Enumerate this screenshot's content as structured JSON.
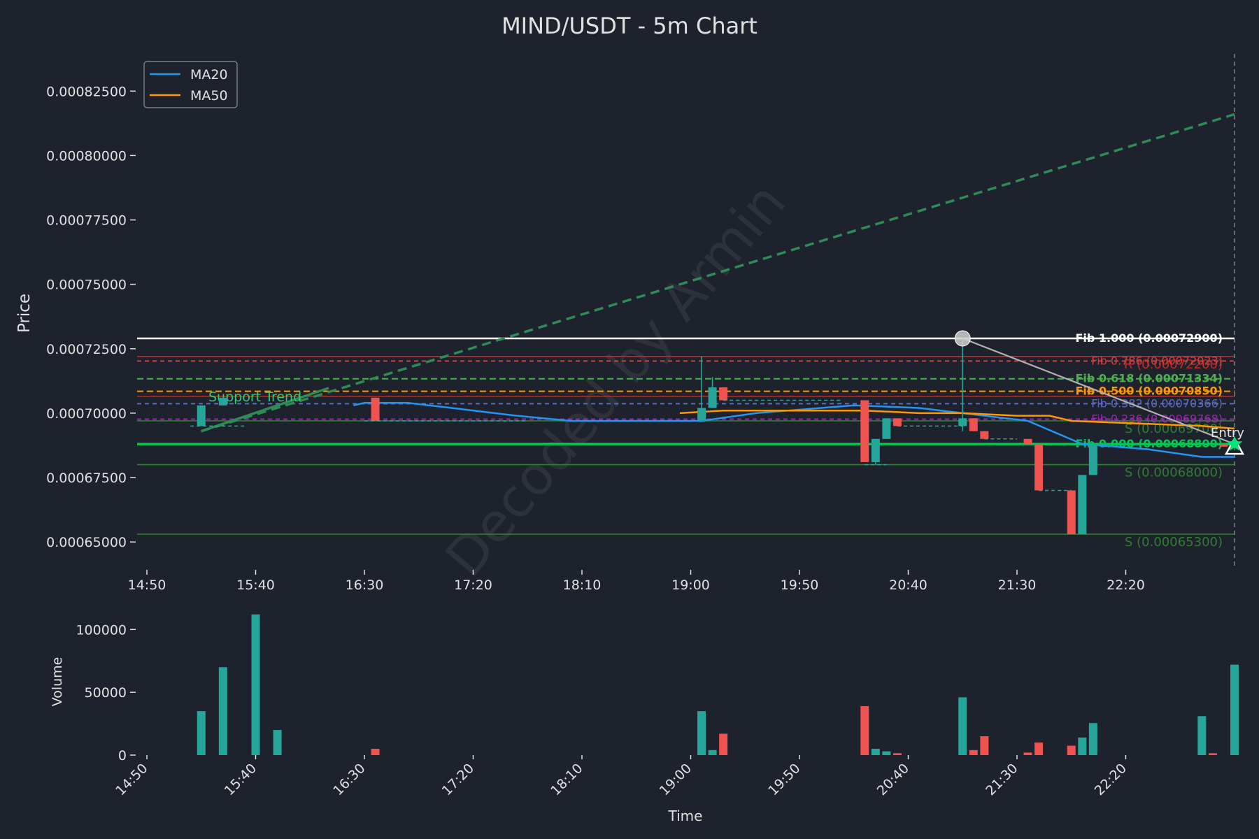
{
  "chart_data": {
    "type": "candlestick",
    "title": "MIND/USDT - 5m Chart",
    "watermark": "Decoded by Armin",
    "price_panel": {
      "ylabel": "Price",
      "ylim": [
        0.00064,
        0.00084
      ],
      "yticks": [
        "0.00065000",
        "0.00067500",
        "0.00070000",
        "0.00072500",
        "0.00075000",
        "0.00077500",
        "0.00080000",
        "0.00082500"
      ],
      "ytick_values": [
        0.00065,
        0.000675,
        0.0007,
        0.000725,
        0.00075,
        0.000775,
        0.0008,
        0.000825
      ],
      "x_range_minutes": [
        0,
        500
      ],
      "xtick_minutes": [
        0,
        50,
        100,
        150,
        200,
        250,
        300,
        350,
        400,
        450
      ],
      "xtick_labels": [
        "14:50",
        "15:40",
        "16:30",
        "17:20",
        "18:10",
        "19:00",
        "19:50",
        "20:40",
        "21:30",
        "22:20"
      ],
      "legend": {
        "placement": "top-left",
        "entries": [
          {
            "name": "MA20",
            "color": "#2196f3"
          },
          {
            "name": "MA50",
            "color": "#ff9800"
          }
        ]
      },
      "candles": [
        {
          "t": 25,
          "o": 0.000695,
          "h": 0.000703,
          "l": 0.000695,
          "c": 0.000703
        },
        {
          "t": 35,
          "o": 0.000703,
          "h": 0.000706,
          "l": 0.000703,
          "c": 0.000706
        },
        {
          "t": 105,
          "o": 0.000706,
          "h": 0.000706,
          "l": 0.000697,
          "c": 0.000697
        },
        {
          "t": 255,
          "o": 0.000697,
          "h": 0.000722,
          "l": 0.000697,
          "c": 0.000702
        },
        {
          "t": 260,
          "o": 0.000702,
          "h": 0.000714,
          "l": 0.000702,
          "c": 0.00071
        },
        {
          "t": 265,
          "o": 0.00071,
          "h": 0.00071,
          "l": 0.000705,
          "c": 0.000705
        },
        {
          "t": 330,
          "o": 0.000705,
          "h": 0.000705,
          "l": 0.000681,
          "c": 0.000681
        },
        {
          "t": 335,
          "o": 0.000681,
          "h": 0.00069,
          "l": 0.00068,
          "c": 0.00069
        },
        {
          "t": 340,
          "o": 0.00069,
          "h": 0.000698,
          "l": 0.00069,
          "c": 0.000698
        },
        {
          "t": 345,
          "o": 0.000698,
          "h": 0.000698,
          "l": 0.000695,
          "c": 0.000695
        },
        {
          "t": 375,
          "o": 0.000695,
          "h": 0.000729,
          "l": 0.000693,
          "c": 0.000698
        },
        {
          "t": 380,
          "o": 0.000698,
          "h": 0.000698,
          "l": 0.000693,
          "c": 0.000693
        },
        {
          "t": 385,
          "o": 0.000693,
          "h": 0.000693,
          "l": 0.00069,
          "c": 0.00069
        },
        {
          "t": 405,
          "o": 0.00069,
          "h": 0.00069,
          "l": 0.000688,
          "c": 0.000688
        },
        {
          "t": 410,
          "o": 0.000688,
          "h": 0.000688,
          "l": 0.00067,
          "c": 0.00067
        },
        {
          "t": 425,
          "o": 0.00067,
          "h": 0.00067,
          "l": 0.000653,
          "c": 0.000653
        },
        {
          "t": 430,
          "o": 0.000653,
          "h": 0.000676,
          "l": 0.000653,
          "c": 0.000676
        },
        {
          "t": 435,
          "o": 0.000676,
          "h": 0.000688,
          "l": 0.000676,
          "c": 0.000688
        },
        {
          "t": 495,
          "o": 0.000688,
          "h": 0.000688,
          "l": 0.000687,
          "c": 0.000687
        }
      ],
      "ma20": [
        [
          95,
          0.000703
        ],
        [
          100,
          0.000704
        ],
        [
          120,
          0.000704
        ],
        [
          140,
          0.000702
        ],
        [
          170,
          0.000699
        ],
        [
          195,
          0.000697
        ],
        [
          255,
          0.000697
        ],
        [
          280,
          0.0007
        ],
        [
          325,
          0.000703
        ],
        [
          355,
          0.000702
        ],
        [
          365,
          0.000701
        ],
        [
          385,
          0.000699
        ],
        [
          405,
          0.000697
        ],
        [
          430,
          0.000688
        ],
        [
          460,
          0.000686
        ],
        [
          485,
          0.000683
        ],
        [
          500,
          0.000683
        ]
      ],
      "ma50": [
        [
          245,
          0.0007
        ],
        [
          265,
          0.000701
        ],
        [
          295,
          0.000701
        ],
        [
          330,
          0.000701
        ],
        [
          355,
          0.0007
        ],
        [
          375,
          0.0007
        ],
        [
          400,
          0.000699
        ],
        [
          415,
          0.000699
        ],
        [
          425,
          0.000697
        ],
        [
          455,
          0.000696
        ],
        [
          485,
          0.000695
        ],
        [
          500,
          0.000694
        ]
      ],
      "dashed_close_levels": [
        {
          "t0": 20,
          "t1": 45,
          "v": 0.000695
        },
        {
          "t0": 100,
          "t1": 175,
          "v": 0.000697
        },
        {
          "t0": 265,
          "t1": 320,
          "v": 0.000705
        },
        {
          "t0": 345,
          "t1": 375,
          "v": 0.000695
        },
        {
          "t0": 385,
          "t1": 400,
          "v": 0.00069
        },
        {
          "t0": 410,
          "t1": 425,
          "v": 0.00067
        },
        {
          "t0": 330,
          "t1": 340,
          "v": 0.00068
        }
      ],
      "support_trend": {
        "label": "Support Trend",
        "from": [
          25,
          0.000693
        ],
        "to": [
          500,
          0.000816
        ]
      },
      "swing": {
        "from": [
          375,
          0.000729
        ],
        "to": [
          500,
          0.000688
        ]
      },
      "levels": [
        {
          "name": "fib_1.000",
          "value": 0.000729,
          "label": "Fib 1.000 (0.00072900)",
          "color": "#ffffff",
          "style": "solid"
        },
        {
          "name": "r_1",
          "value": 0.000722,
          "label": "R (0.00072200)",
          "color": "#c62828",
          "style": "solid"
        },
        {
          "name": "fib_0.786",
          "value": 0.00072023,
          "label": "Fib 0.786 (0.00072023)",
          "color": "#c84444",
          "style": "dashed"
        },
        {
          "name": "fib_0.618",
          "value": 0.00071334,
          "label": "Fib 0.618 (0.00071334)",
          "color": "#4caf50",
          "style": "dashed"
        },
        {
          "name": "fib_0.500",
          "value": 0.0007085,
          "label": "Fib 0.500 (0.00070850)",
          "color": "#ff9800",
          "style": "dashed"
        },
        {
          "name": "r_2",
          "value": 0.0007065,
          "label": "",
          "color": "#c62828",
          "style": "solid"
        },
        {
          "name": "fib_0.382",
          "value": 0.00070366,
          "label": "Fib 0.382 (0.00070366)",
          "color": "#5c6bc0",
          "style": "dashed"
        },
        {
          "name": "fib_0.236",
          "value": 0.00069768,
          "label": "Fib 0.236 (0.00069768)",
          "color": "#9c27b0",
          "style": "dashed"
        },
        {
          "name": "s_1",
          "value": 0.000697,
          "label": "S (0.00069700)",
          "color": "#2e7d32",
          "style": "solid"
        },
        {
          "name": "fib_0.000",
          "value": 0.000688,
          "label": "Fib 0.000 (0.00068800)",
          "color": "#00c853",
          "style": "solid"
        },
        {
          "name": "s_2",
          "value": 0.00068,
          "label": "S (0.00068000)",
          "color": "#2e7d32",
          "style": "solid"
        },
        {
          "name": "s_3",
          "value": 0.000653,
          "label": "S (0.00065300)",
          "color": "#2e7d32",
          "style": "solid"
        }
      ],
      "entry_marker": {
        "t": 500,
        "v": 0.000688,
        "label": "Entry"
      },
      "high_marker": {
        "t": 375,
        "v": 0.000729
      },
      "current_time_line": 500
    },
    "volume_panel": {
      "ylabel": "Volume",
      "xlabel": "Time",
      "ylim": [
        0,
        118000
      ],
      "yticks": [
        "0",
        "50000",
        "100000"
      ],
      "ytick_values": [
        0,
        50000,
        100000
      ],
      "bars": [
        {
          "t": 25,
          "v": 35000,
          "up": true
        },
        {
          "t": 35,
          "v": 70000,
          "up": true
        },
        {
          "t": 50,
          "v": 112000,
          "up": true
        },
        {
          "t": 60,
          "v": 20000,
          "up": true
        },
        {
          "t": 105,
          "v": 5000,
          "up": false
        },
        {
          "t": 255,
          "v": 35000,
          "up": true
        },
        {
          "t": 260,
          "v": 4000,
          "up": true
        },
        {
          "t": 265,
          "v": 17000,
          "up": false
        },
        {
          "t": 330,
          "v": 39000,
          "up": false
        },
        {
          "t": 335,
          "v": 5000,
          "up": true
        },
        {
          "t": 340,
          "v": 3000,
          "up": true
        },
        {
          "t": 345,
          "v": 1500,
          "up": false
        },
        {
          "t": 375,
          "v": 46000,
          "up": true
        },
        {
          "t": 380,
          "v": 4000,
          "up": false
        },
        {
          "t": 385,
          "v": 15000,
          "up": false
        },
        {
          "t": 405,
          "v": 2000,
          "up": false
        },
        {
          "t": 410,
          "v": 10000,
          "up": false
        },
        {
          "t": 425,
          "v": 7500,
          "up": false
        },
        {
          "t": 430,
          "v": 14000,
          "up": true
        },
        {
          "t": 435,
          "v": 25500,
          "up": true
        },
        {
          "t": 485,
          "v": 31000,
          "up": true
        },
        {
          "t": 490,
          "v": 1500,
          "up": false
        },
        {
          "t": 500,
          "v": 72000,
          "up": true
        }
      ]
    },
    "colors": {
      "up": "#26a69a",
      "down": "#ef5350",
      "background": "#1e222c",
      "text": "#e0e0e0",
      "support_trend": "#2e8b57"
    }
  }
}
